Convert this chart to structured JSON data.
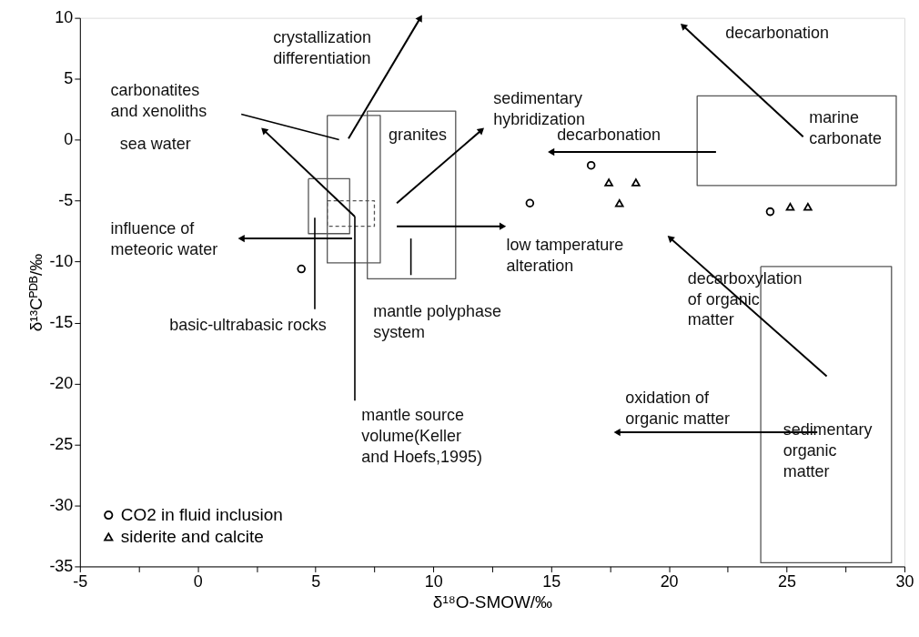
{
  "chart_data": {
    "type": "scatter",
    "xlabel": "δ¹⁸O-SMOW/‰",
    "ylabel": "δ¹³Cᴾᴰᴮ/‰",
    "xlim": [
      -5,
      30
    ],
    "ylim": [
      -35,
      10
    ],
    "xticks": [
      -5,
      {
        "value": -2.5,
        "label": null
      },
      0,
      {
        "value": 2.5,
        "label": null
      },
      5,
      {
        "value": 7.5,
        "label": null
      },
      10,
      {
        "value": 12.5,
        "label": null
      },
      15,
      {
        "value": 17.5,
        "label": null
      },
      20,
      {
        "value": 22.5,
        "label": null
      },
      25,
      {
        "value": 27.5,
        "label": null
      },
      30
    ],
    "yticks": [
      -35,
      -30,
      -25,
      -20,
      -15,
      -10,
      -5,
      0,
      5,
      10
    ],
    "grid": false,
    "legend": "bottom left",
    "series": [
      {
        "name": "CO2 in fluid inclusion",
        "marker": "circle",
        "color": "#000000",
        "x": [
          4.4,
          14.1,
          16.7,
          24.3
        ],
        "values": [
          -10.6,
          -5.2,
          -2.1,
          -5.9
        ]
      },
      {
        "name": "siderite and calcite",
        "marker": "triangle",
        "color": "#000000",
        "x": [
          17.45,
          18.6,
          17.9,
          25.15,
          25.9
        ],
        "values": [
          -3.5,
          -3.5,
          -5.2,
          -5.5,
          -5.5
        ]
      },
      {
        "type": "line",
        "color": "#000000",
        "line_style": "solid",
        "x": [
          1.85,
          6.0
        ],
        "values": [
          2.1,
          0.0
        ]
      },
      {
        "type": "line",
        "color": "#000000",
        "line_style": "solid",
        "x": [
          6.67,
          6.67
        ],
        "values": [
          -6.3,
          -21.4
        ]
      },
      {
        "type": "line",
        "color": "#000000",
        "line_style": "solid",
        "x": [
          4.97,
          4.97
        ],
        "values": [
          -6.4,
          -13.9
        ]
      },
      {
        "type": "line",
        "color": "#000000",
        "line_style": "solid",
        "x": [
          9.05,
          9.05
        ],
        "values": [
          -8.1,
          -11.1
        ]
      }
    ],
    "annotations": [
      "carbonatites\nand xenoliths",
      "crystallization\ndifferentiation",
      "sedimentary\nhybridization",
      "decarbonation",
      "marine\ncarbonate",
      "granites",
      "sea water",
      "decarbonation",
      "influence of\nmeteoric water",
      "low tamperature\nalteration",
      "decarboxylation\nof organic\nmatter",
      "basic-ultrabasic rocks",
      "mantle polyphase\nsystem",
      "mantle source\nvolume(Keller\nand Hoefs,1995)",
      "oxidation of\norganic matter",
      "sedimentary\norganic\nmatter"
    ]
  }
}
